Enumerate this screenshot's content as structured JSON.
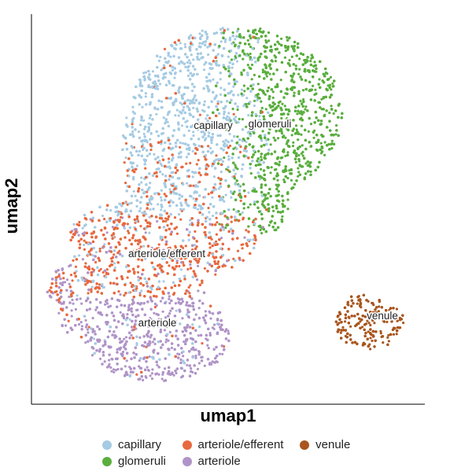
{
  "chart_data": {
    "type": "scatter",
    "xlabel": "umap1",
    "ylabel": "umap2",
    "grid": false,
    "legend_position": "bottom",
    "series": [
      {
        "name": "capillary",
        "color": "#a6cbe3",
        "label": "capillary"
      },
      {
        "name": "arteriole/efferent",
        "color": "#e8693f",
        "label": "arteriole/efferent"
      },
      {
        "name": "venule",
        "color": "#a9561e",
        "label": "venule"
      },
      {
        "name": "glomeruli",
        "color": "#5aae3e",
        "label": "glomeruli"
      },
      {
        "name": "arteriole",
        "color": "#b094c8",
        "label": "arteriole"
      }
    ]
  }
}
